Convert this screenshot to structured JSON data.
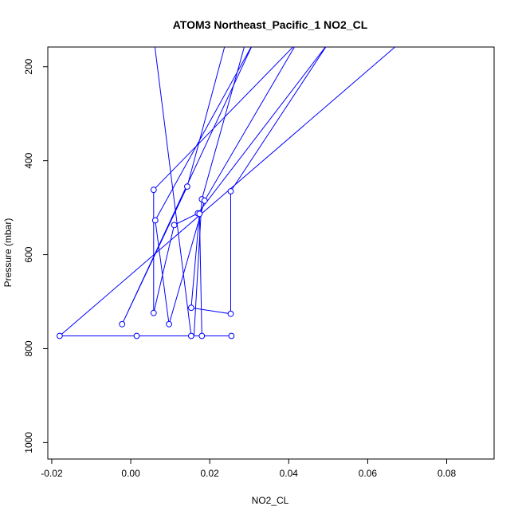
{
  "chart_data": {
    "type": "line",
    "title": "ATOM3 Northeast_Pacific_1 NO2_CL",
    "xlabel": "NO2_CL",
    "ylabel": "Pressure (mbar)",
    "xlim": [
      -0.021,
      0.092
    ],
    "ylim": [
      1035,
      158
    ],
    "y_reversed": true,
    "x_ticks": [
      -0.02,
      0.0,
      0.02,
      0.04,
      0.06,
      0.08
    ],
    "x_tick_labels": [
      "-0.02",
      "0.00",
      "0.02",
      "0.04",
      "0.06",
      "0.08"
    ],
    "y_ticks": [
      200,
      400,
      600,
      800,
      1000
    ],
    "y_tick_labels": [
      "200",
      "400",
      "600",
      "800",
      "1000"
    ],
    "grid": false,
    "legend": "none",
    "line_color": "#0000ff",
    "marker": "open-circle",
    "series": [
      {
        "x": [
          0.024,
          0.0143,
          -0.0022,
          0.031,
          0.0062,
          0.0097,
          0.0187,
          0.042,
          0.0058,
          0.0058,
          0.011,
          0.017,
          0.05,
          0.0253,
          0.0253,
          0.0153,
          0.0174,
          0.018,
          0.018,
          0.0255,
          0.0015,
          -0.018,
          0.068
        ],
        "y": [
          150,
          455,
          748,
          150,
          527,
          748,
          485,
          150,
          462,
          724,
          537,
          512,
          150,
          465,
          726,
          713,
          513,
          773,
          773,
          773,
          773,
          773,
          150
        ]
      },
      {
        "x": [
          0.016,
          0.018,
          0.029,
          0.006,
          0.0153,
          0.01
        ],
        "y": [
          773,
          482,
          150,
          150,
          773,
          773
        ]
      }
    ],
    "markers": [
      {
        "x": 0.0143,
        "y": 455
      },
      {
        "x": 0.0058,
        "y": 462
      },
      {
        "x": 0.0253,
        "y": 465
      },
      {
        "x": 0.018,
        "y": 482
      },
      {
        "x": 0.0187,
        "y": 485
      },
      {
        "x": 0.017,
        "y": 512
      },
      {
        "x": 0.0174,
        "y": 513
      },
      {
        "x": 0.0062,
        "y": 527
      },
      {
        "x": 0.011,
        "y": 537
      },
      {
        "x": 0.0153,
        "y": 713
      },
      {
        "x": 0.0058,
        "y": 724
      },
      {
        "x": 0.0253,
        "y": 726
      },
      {
        "x": -0.0022,
        "y": 748
      },
      {
        "x": 0.0097,
        "y": 748
      },
      {
        "x": -0.018,
        "y": 773
      },
      {
        "x": 0.0015,
        "y": 773
      },
      {
        "x": 0.0153,
        "y": 773
      },
      {
        "x": 0.018,
        "y": 773
      },
      {
        "x": 0.0255,
        "y": 773
      }
    ]
  }
}
